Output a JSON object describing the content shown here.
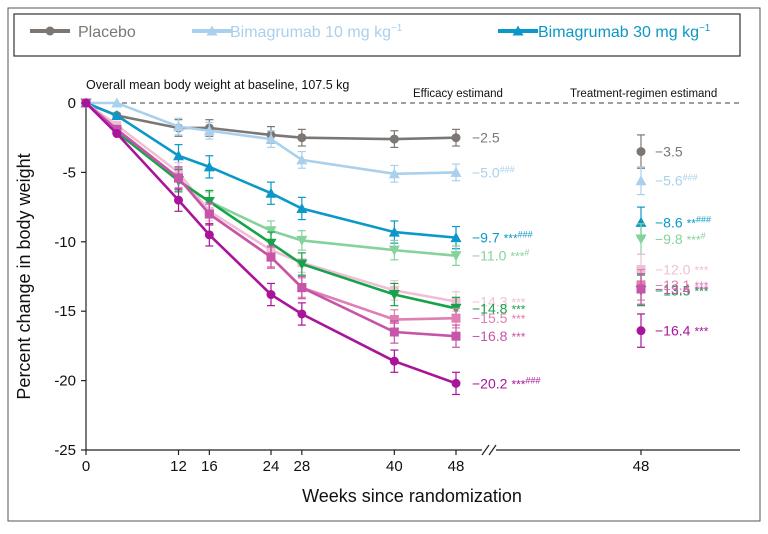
{
  "chart_data": {
    "type": "line",
    "legend": {
      "placement": "top",
      "entries": [
        {
          "name": "Placebo",
          "color": "#7d7773",
          "marker": "circle"
        },
        {
          "name": "Bimagrumab 10 mg kg",
          "sup": "−1",
          "color": "#a9d0ec",
          "marker": "triangle-up"
        },
        {
          "name": "Bimagrumab 30 mg kg",
          "sup": "−1",
          "color": "#0b98c8",
          "marker": "triangle-up"
        }
      ]
    },
    "annotation": "Overall mean body weight at baseline, 107.5 kg",
    "efficacy_label": "Efficacy estimand",
    "regimen_label": "Treatment-regimen estimand",
    "ylabel": "Percent change in body weight",
    "xlabel": "Weeks since randomization",
    "ylim": [
      -25,
      0
    ],
    "yticks": [
      "0",
      "-5",
      "-10",
      "-15",
      "-20",
      "-25"
    ],
    "yticks_values": [
      0,
      -5,
      -10,
      -15,
      -20,
      -25
    ],
    "xticks": [
      "0",
      "12",
      "16",
      "24",
      "28",
      "40",
      "48"
    ],
    "xticks_values": [
      0,
      12,
      16,
      24,
      28,
      40,
      48
    ],
    "regimen_xtick": "48",
    "x": [
      0,
      4,
      12,
      16,
      24,
      28,
      40,
      48
    ],
    "series": [
      {
        "color": "#7d7773",
        "marker": "circle",
        "err": 0.6,
        "values": [
          0,
          -0.9,
          -1.8,
          -1.8,
          -2.3,
          -2.5,
          -2.6,
          -2.5
        ],
        "end_label": "−2.5",
        "sig": "",
        "hash": "",
        "regimen": {
          "value": -3.5,
          "err": 1.2,
          "label": "−3.5",
          "sig": "",
          "hash": ""
        }
      },
      {
        "color": "#a9d0ec",
        "marker": "triangle-up",
        "err": 0.6,
        "values": [
          0,
          0,
          -1.7,
          -2.0,
          -2.6,
          -4.1,
          -5.1,
          -5.0
        ],
        "end_label": "−5.0",
        "sig": "",
        "hash": "###",
        "regimen": {
          "value": -5.6,
          "err": 1.0,
          "label": "−5.6",
          "sig": "",
          "hash": "###"
        }
      },
      {
        "color": "#0b98c8",
        "marker": "triangle-up",
        "err": 0.8,
        "values": [
          0,
          -0.9,
          -3.8,
          -4.6,
          -6.5,
          -7.6,
          -9.3,
          -9.7
        ],
        "end_label": "−9.7",
        "sig": "***",
        "hash": "###",
        "regimen": {
          "value": -8.6,
          "err": 1.1,
          "label": "−8.6",
          "sig": "**",
          "hash": "###"
        }
      },
      {
        "color": "#86d29c",
        "marker": "triangle-down",
        "err": 0.7,
        "values": [
          0,
          -2.1,
          -5.6,
          -7.1,
          -9.2,
          -9.9,
          -10.6,
          -11.0
        ],
        "end_label": "−11.0",
        "sig": "***",
        "hash": "#",
        "regimen": {
          "value": -9.8,
          "err": 1.1,
          "label": "−9.8",
          "sig": "***",
          "hash": "#"
        }
      },
      {
        "color": "#f0bfd6",
        "marker": "square",
        "err": 0.7,
        "values": [
          0,
          -1.6,
          -5.0,
          -7.8,
          -10.6,
          -11.5,
          -13.5,
          -14.3
        ],
        "end_label": "−14.3",
        "sig": "***",
        "hash": "",
        "regimen": {
          "value": -12.0,
          "err": 1.1,
          "label": "−12.0",
          "sig": "***",
          "hash": ""
        }
      },
      {
        "color": "#16a34a",
        "marker": "triangle-down",
        "err": 0.8,
        "values": [
          0,
          -2.1,
          -5.6,
          -7.1,
          -10.1,
          -11.6,
          -13.8,
          -14.8
        ],
        "end_label": "−14.8",
        "sig": "***",
        "hash": "",
        "regimen": {
          "value": -13.5,
          "err": 1.1,
          "label": "−13.5",
          "sig": "***",
          "hash": ""
        }
      },
      {
        "color": "#df7fb3",
        "marker": "square",
        "err": 0.7,
        "values": [
          0,
          -1.9,
          -5.4,
          -8.0,
          -11.1,
          -13.3,
          -15.6,
          -15.5
        ],
        "end_label": "−15.5",
        "sig": "***",
        "hash": "",
        "regimen": {
          "value": -13.1,
          "err": 1.1,
          "label": "−13.1",
          "sig": "***",
          "hash": ""
        }
      },
      {
        "color": "#c654a8",
        "marker": "square",
        "err": 0.8,
        "values": [
          0,
          -1.9,
          -5.4,
          -8.0,
          -11.1,
          -13.3,
          -16.5,
          -16.8
        ],
        "end_label": "−16.8",
        "sig": "***",
        "hash": "",
        "regimen": {
          "value": -13.4,
          "err": 1.1,
          "label": "−13.4",
          "sig": "***",
          "hash": ""
        }
      },
      {
        "color": "#a8149a",
        "marker": "circle",
        "err": 0.8,
        "values": [
          0,
          -2.2,
          -7.0,
          -9.5,
          -13.8,
          -15.2,
          -18.6,
          -20.2
        ],
        "end_label": "−20.2",
        "sig": "***",
        "hash": "###",
        "regimen": {
          "value": -16.4,
          "err": 1.2,
          "label": "−16.4",
          "sig": "***",
          "hash": ""
        }
      }
    ]
  }
}
